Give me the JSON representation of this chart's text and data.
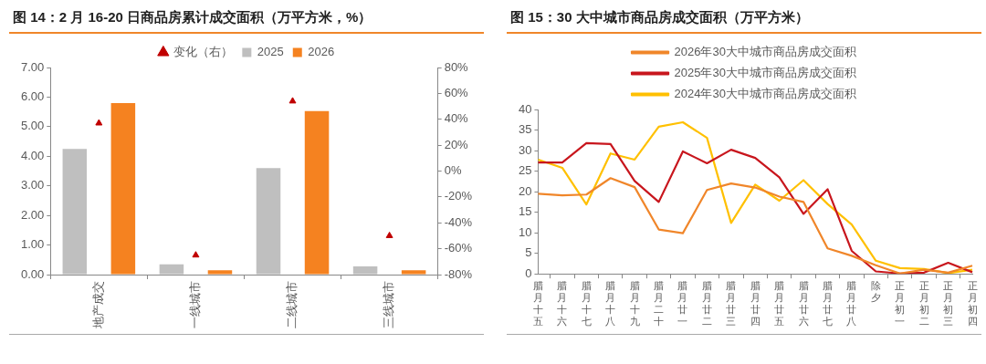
{
  "chart_data": [
    {
      "type": "bar",
      "title": "图 14：2 月 16-20 日商品房累计成交面积（万平方米，%）",
      "categories": [
        "地产成交",
        "一线城市",
        "二线城市",
        "三线城市"
      ],
      "series": [
        {
          "name": "2025",
          "color": "#bfbfbf",
          "values": [
            4.25,
            0.35,
            3.6,
            0.28
          ]
        },
        {
          "name": "2026",
          "color": "#f58220",
          "values": [
            5.8,
            0.15,
            5.53,
            0.15
          ]
        },
        {
          "name": "变化（右）",
          "type": "scatter",
          "marker": "triangle",
          "axis": "y2",
          "color": "#c00000",
          "values": [
            37,
            -65,
            54,
            -50
          ]
        }
      ],
      "ylim": [
        0,
        7
      ],
      "yticks": [
        {
          "value": 0,
          "label": "0.00"
        },
        {
          "value": 1,
          "label": "1.00"
        },
        {
          "value": 2,
          "label": "2.00"
        },
        {
          "value": 3,
          "label": "3.00"
        },
        {
          "value": 4,
          "label": "4.00"
        },
        {
          "value": 5,
          "label": "5.00"
        },
        {
          "value": 6,
          "label": "6.00"
        },
        {
          "value": 7,
          "label": "7.00"
        }
      ],
      "y2lim": [
        -80,
        80
      ],
      "y2ticks": [
        {
          "value": -80,
          "label": "-80%"
        },
        {
          "value": -60,
          "label": "-60%"
        },
        {
          "value": -40,
          "label": "-40%"
        },
        {
          "value": -20,
          "label": "-20%"
        },
        {
          "value": 0,
          "label": "0%"
        },
        {
          "value": 20,
          "label": "20%"
        },
        {
          "value": 40,
          "label": "40%"
        },
        {
          "value": 60,
          "label": "60%"
        },
        {
          "value": 80,
          "label": "80%"
        }
      ],
      "grid": false,
      "legend": "top"
    },
    {
      "type": "line",
      "title": "图 15：30 大中城市商品房成交面积（万平方米）",
      "categories": [
        "腊月十五",
        "腊月十六",
        "腊月十七",
        "腊月十八",
        "腊月十九",
        "腊月二十",
        "腊月廿一",
        "腊月廿二",
        "腊月廿三",
        "腊月廿四",
        "腊月廿五",
        "腊月廿六",
        "腊月廿七",
        "腊月廿八",
        "除夕",
        "正月初一",
        "正月初二",
        "正月初三",
        "正月初四"
      ],
      "series": [
        {
          "name": "2026年30大中城市商品房成交面积",
          "color": "#f0862a",
          "values": [
            19.5,
            19.1,
            19.3,
            23.3,
            21.1,
            10.8,
            9.9,
            20.4,
            22.0,
            21.0,
            18.8,
            17.5,
            6.2,
            4.4,
            2.1,
            0.1,
            1.0,
            0.3,
            2.0
          ]
        },
        {
          "name": "2025年30大中城市商品房成交面积",
          "color": "#c8161d",
          "values": [
            27.1,
            27.1,
            31.8,
            31.6,
            22.6,
            17.5,
            29.8,
            26.9,
            30.2,
            28.2,
            23.5,
            14.6,
            20.6,
            5.6,
            0.6,
            0.1,
            0.3,
            2.7,
            0.4
          ]
        },
        {
          "name": "2024年30大中城市商品房成交面积",
          "color": "#ffc000",
          "values": [
            27.8,
            25.8,
            16.9,
            29.3,
            27.8,
            35.8,
            36.9,
            33.1,
            12.4,
            21.7,
            17.8,
            22.8,
            17.0,
            12.0,
            3.2,
            1.4,
            1.2,
            0.2,
            1.0
          ]
        }
      ],
      "ylim": [
        0,
        40
      ],
      "yticks": [
        0,
        5,
        10,
        15,
        20,
        25,
        30,
        35,
        40
      ],
      "grid": false,
      "legend": "top",
      "marker": "none"
    }
  ]
}
